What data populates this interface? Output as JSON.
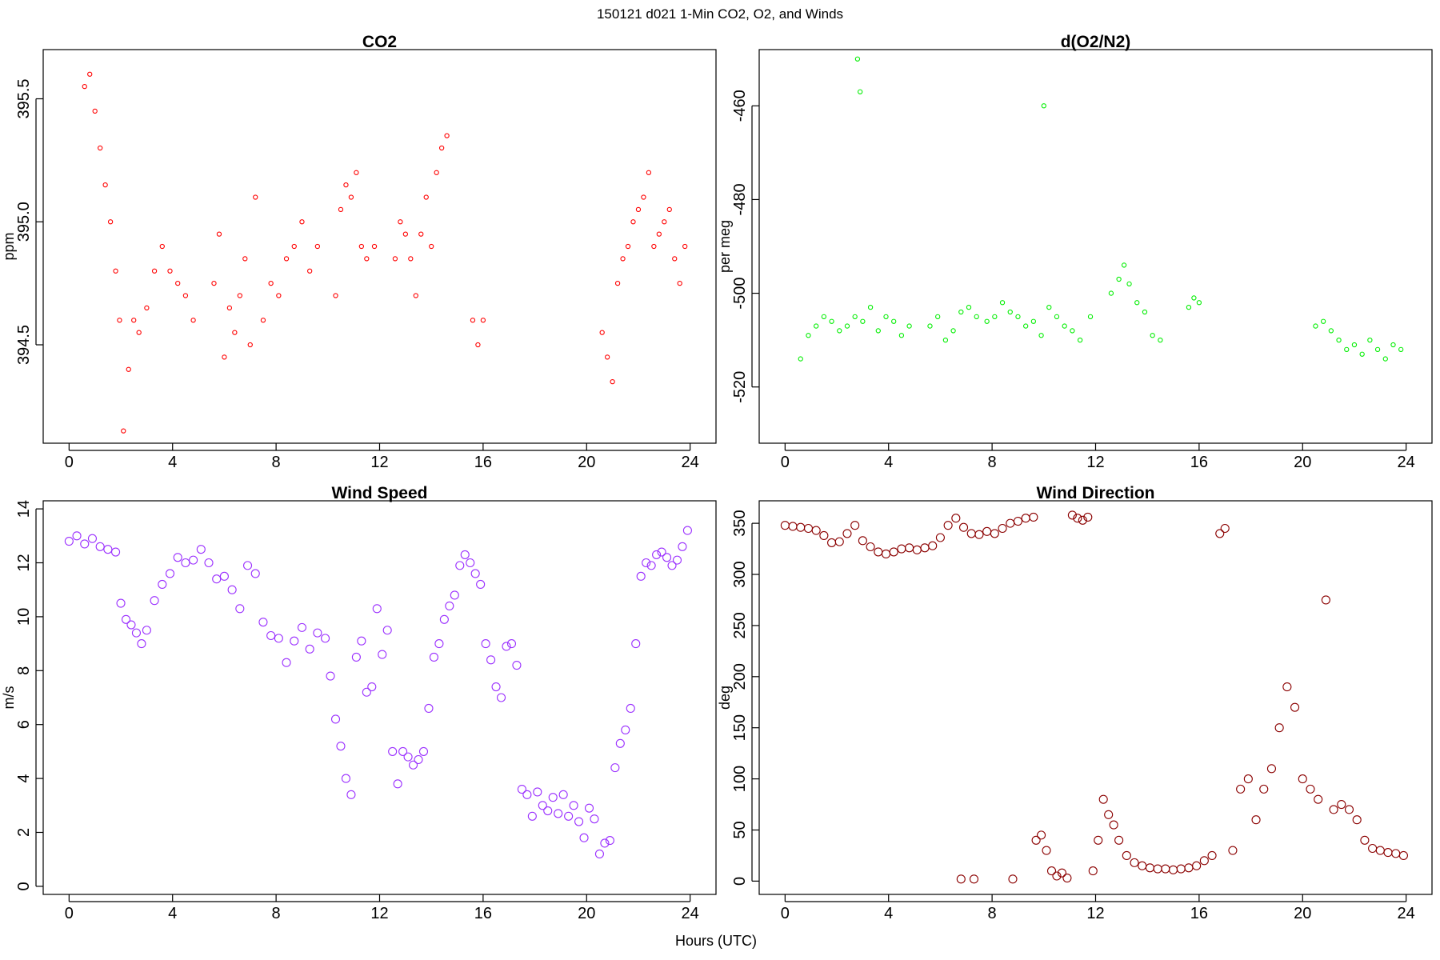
{
  "figure": {
    "title": "150121   d021   1-Min CO2, O2, and Winds",
    "xlabel": "Hours (UTC)"
  },
  "chart_data": [
    {
      "type": "scatter",
      "title": "CO2",
      "xlabel": "",
      "ylabel": "ppm",
      "xlim": [
        -1,
        25
      ],
      "ylim": [
        394.1,
        395.7
      ],
      "xticks": [
        0,
        4,
        8,
        12,
        16,
        20,
        24
      ],
      "yticks": [
        394.5,
        395.0,
        395.5
      ],
      "ytick_labels": [
        "394.5",
        "395.0",
        "395.5"
      ],
      "grid": false,
      "color": "#ff0000",
      "marker": "open-circle-small",
      "series": [
        {
          "x": [
            0.6,
            0.8,
            1.0,
            1.2,
            1.4,
            1.6,
            1.8,
            1.95,
            2.1,
            2.3,
            2.5,
            2.7,
            3.0,
            3.3,
            3.6,
            3.9,
            4.2,
            4.5,
            4.8,
            5.6,
            5.8,
            6.0,
            6.2,
            6.4,
            6.6,
            6.8,
            7.0,
            7.2,
            7.5,
            7.8,
            8.1,
            8.4,
            8.7,
            9.0,
            9.3,
            9.6,
            10.3,
            10.5,
            10.7,
            10.9,
            11.1,
            11.3,
            11.5,
            11.8,
            12.6,
            12.8,
            13.0,
            13.2,
            13.4,
            13.6,
            13.8,
            14.0,
            14.2,
            14.4,
            14.6,
            15.6,
            15.8,
            16.0,
            20.6,
            20.8,
            21.0,
            21.2,
            21.4,
            21.6,
            21.8,
            22.0,
            22.2,
            22.4,
            22.6,
            22.8,
            23.0,
            23.2,
            23.4,
            23.6,
            23.8
          ],
          "y": [
            395.55,
            395.6,
            395.45,
            395.3,
            395.15,
            395.0,
            394.8,
            394.6,
            394.15,
            394.4,
            394.6,
            394.55,
            394.65,
            394.8,
            394.9,
            394.8,
            394.75,
            394.7,
            394.6,
            394.75,
            394.95,
            394.45,
            394.65,
            394.55,
            394.7,
            394.85,
            394.5,
            395.1,
            394.6,
            394.75,
            394.7,
            394.85,
            394.9,
            395.0,
            394.8,
            394.9,
            394.7,
            395.05,
            395.15,
            395.1,
            395.2,
            394.9,
            394.85,
            394.9,
            394.85,
            395.0,
            394.95,
            394.85,
            394.7,
            394.95,
            395.1,
            394.9,
            395.2,
            395.3,
            395.35,
            394.6,
            394.5,
            394.6,
            394.55,
            394.45,
            394.35,
            394.75,
            394.85,
            394.9,
            395.0,
            395.05,
            395.1,
            395.2,
            394.9,
            394.95,
            395.0,
            395.05,
            394.85,
            394.75,
            394.9
          ]
        }
      ]
    },
    {
      "type": "scatter",
      "title": "d(O2/N2)",
      "xlabel": "",
      "ylabel": "per meg",
      "xlim": [
        -1,
        25
      ],
      "ylim": [
        -532,
        -448
      ],
      "xticks": [
        0,
        4,
        8,
        12,
        16,
        20,
        24
      ],
      "yticks": [
        -460,
        -480,
        -500,
        -520
      ],
      "ytick_labels": [
        "-460",
        "-480",
        "-500",
        "-520"
      ],
      "grid": false,
      "color": "#00ee00",
      "marker": "open-circle-small",
      "series": [
        {
          "x": [
            0.6,
            0.9,
            1.2,
            1.5,
            1.8,
            2.1,
            2.4,
            2.7,
            2.8,
            2.9,
            3.0,
            3.3,
            3.6,
            3.9,
            4.2,
            4.5,
            4.8,
            5.6,
            5.9,
            6.2,
            6.5,
            6.8,
            7.1,
            7.4,
            7.8,
            8.1,
            8.4,
            8.7,
            9.0,
            9.3,
            9.6,
            9.9,
            10.2,
            10.0,
            10.5,
            10.8,
            11.1,
            11.4,
            11.8,
            12.6,
            12.9,
            13.1,
            13.3,
            13.6,
            13.9,
            14.2,
            14.5,
            15.6,
            15.8,
            16.0,
            20.5,
            20.8,
            21.1,
            21.4,
            21.7,
            22.0,
            22.3,
            22.6,
            22.9,
            23.2,
            23.5,
            23.8
          ],
          "y": [
            -514,
            -509,
            -507,
            -505,
            -506,
            -508,
            -507,
            -505,
            -450,
            -457,
            -506,
            -503,
            -508,
            -505,
            -506,
            -509,
            -507,
            -507,
            -505,
            -510,
            -508,
            -504,
            -503,
            -505,
            -506,
            -505,
            -502,
            -504,
            -505,
            -507,
            -506,
            -509,
            -503,
            -460,
            -505,
            -507,
            -508,
            -510,
            -505,
            -500,
            -497,
            -494,
            -498,
            -502,
            -504,
            -509,
            -510,
            -503,
            -501,
            -502,
            -507,
            -506,
            -508,
            -510,
            -512,
            -511,
            -513,
            -510,
            -512,
            -514,
            -511,
            -512
          ]
        }
      ]
    },
    {
      "type": "scatter",
      "title": "Wind Speed",
      "xlabel": "",
      "ylabel": "m/s",
      "xlim": [
        -1,
        25
      ],
      "ylim": [
        -0.3,
        14.3
      ],
      "xticks": [
        0,
        4,
        8,
        12,
        16,
        20,
        24
      ],
      "yticks": [
        0,
        2,
        4,
        6,
        8,
        10,
        12,
        14
      ],
      "ytick_labels": [
        "0",
        "2",
        "4",
        "6",
        "8",
        "10",
        "12",
        "14"
      ],
      "grid": false,
      "color": "#9b30ff",
      "marker": "open-circle-large",
      "series": [
        {
          "x": [
            0.0,
            0.3,
            0.6,
            0.9,
            1.2,
            1.5,
            1.8,
            2.0,
            2.2,
            2.4,
            2.6,
            2.8,
            3.0,
            3.3,
            3.6,
            3.9,
            4.2,
            4.5,
            4.8,
            5.1,
            5.4,
            5.7,
            6.0,
            6.3,
            6.6,
            6.9,
            7.2,
            7.5,
            7.8,
            8.1,
            8.4,
            8.7,
            9.0,
            9.3,
            9.6,
            9.9,
            10.1,
            10.3,
            10.5,
            10.7,
            10.9,
            11.1,
            11.3,
            11.5,
            11.7,
            11.9,
            12.1,
            12.3,
            12.5,
            12.7,
            12.9,
            13.1,
            13.3,
            13.5,
            13.7,
            13.9,
            14.1,
            14.3,
            14.5,
            14.7,
            14.9,
            15.1,
            15.3,
            15.5,
            15.7,
            15.9,
            16.1,
            16.3,
            16.5,
            16.7,
            16.9,
            17.1,
            17.3,
            17.5,
            17.7,
            17.9,
            18.1,
            18.3,
            18.5,
            18.7,
            18.9,
            19.1,
            19.3,
            19.5,
            19.7,
            19.9,
            20.1,
            20.3,
            20.5,
            20.7,
            20.9,
            21.1,
            21.3,
            21.5,
            21.7,
            21.9,
            22.1,
            22.3,
            22.5,
            22.7,
            22.9,
            23.1,
            23.3,
            23.5,
            23.7,
            23.9
          ],
          "y": [
            12.8,
            13.0,
            12.7,
            12.9,
            12.6,
            12.5,
            12.4,
            10.5,
            9.9,
            9.7,
            9.4,
            9.0,
            9.5,
            10.6,
            11.2,
            11.6,
            12.2,
            12.0,
            12.1,
            12.5,
            12.0,
            11.4,
            11.5,
            11.0,
            10.3,
            11.9,
            11.6,
            9.8,
            9.3,
            9.2,
            8.3,
            9.1,
            9.6,
            8.8,
            9.4,
            9.2,
            7.8,
            6.2,
            5.2,
            4.0,
            3.4,
            8.5,
            9.1,
            7.2,
            7.4,
            10.3,
            8.6,
            9.5,
            5.0,
            3.8,
            5.0,
            4.8,
            4.5,
            4.7,
            5.0,
            6.6,
            8.5,
            9.0,
            9.9,
            10.4,
            10.8,
            11.9,
            12.3,
            12.0,
            11.6,
            11.2,
            9.0,
            8.4,
            7.4,
            7.0,
            8.9,
            9.0,
            8.2,
            3.6,
            3.4,
            2.6,
            3.5,
            3.0,
            2.8,
            3.3,
            2.7,
            3.4,
            2.6,
            3.0,
            2.4,
            1.8,
            2.9,
            2.5,
            1.2,
            1.6,
            1.7,
            4.4,
            5.3,
            5.8,
            6.6,
            9.0,
            11.5,
            12.0,
            11.9,
            12.3,
            12.4,
            12.2,
            11.9,
            12.1,
            12.6,
            13.2
          ]
        }
      ]
    },
    {
      "type": "scatter",
      "title": "Wind Direction",
      "xlabel": "",
      "ylabel": "deg",
      "xlim": [
        -1,
        25
      ],
      "ylim": [
        -13,
        372
      ],
      "xticks": [
        0,
        4,
        8,
        12,
        16,
        20,
        24
      ],
      "yticks": [
        0,
        50,
        100,
        150,
        200,
        250,
        300,
        350
      ],
      "ytick_labels": [
        "0",
        "50",
        "100",
        "150",
        "200",
        "250",
        "300",
        "350"
      ],
      "grid": false,
      "color": "#8b0000",
      "marker": "open-circle-large",
      "series": [
        {
          "x": [
            0.0,
            0.3,
            0.6,
            0.9,
            1.2,
            1.5,
            1.8,
            2.1,
            2.4,
            2.7,
            3.0,
            3.3,
            3.6,
            3.9,
            4.2,
            4.5,
            4.8,
            5.1,
            5.4,
            5.7,
            6.0,
            6.3,
            6.6,
            6.9,
            7.2,
            7.5,
            7.8,
            8.1,
            8.4,
            8.7,
            9.0,
            9.3,
            9.6,
            6.8,
            7.3,
            8.8,
            9.7,
            9.9,
            10.1,
            10.3,
            10.5,
            10.7,
            10.9,
            11.1,
            11.3,
            11.5,
            11.7,
            11.9,
            12.1,
            12.3,
            12.5,
            12.7,
            12.9,
            13.2,
            13.5,
            13.8,
            14.1,
            14.4,
            14.7,
            15.0,
            15.3,
            15.6,
            15.9,
            16.2,
            16.5,
            16.8,
            17.0,
            17.3,
            17.6,
            17.9,
            18.2,
            18.5,
            18.8,
            19.1,
            19.4,
            19.7,
            20.0,
            20.3,
            20.6,
            20.9,
            21.2,
            21.5,
            21.8,
            22.1,
            22.4,
            22.7,
            23.0,
            23.3,
            23.6,
            23.9
          ],
          "y": [
            348,
            347,
            346,
            345,
            343,
            338,
            331,
            332,
            340,
            348,
            333,
            327,
            322,
            320,
            322,
            325,
            326,
            324,
            326,
            328,
            336,
            348,
            355,
            346,
            340,
            339,
            342,
            340,
            345,
            350,
            352,
            355,
            356,
            2,
            2,
            2,
            40,
            45,
            30,
            10,
            5,
            8,
            3,
            358,
            355,
            353,
            356,
            10,
            40,
            80,
            65,
            55,
            40,
            25,
            18,
            15,
            13,
            12,
            12,
            11,
            12,
            13,
            15,
            20,
            25,
            340,
            345,
            30,
            90,
            100,
            60,
            90,
            110,
            150,
            190,
            170,
            100,
            90,
            80,
            275,
            70,
            75,
            70,
            60,
            40,
            32,
            30,
            28,
            27,
            25
          ]
        }
      ]
    }
  ]
}
